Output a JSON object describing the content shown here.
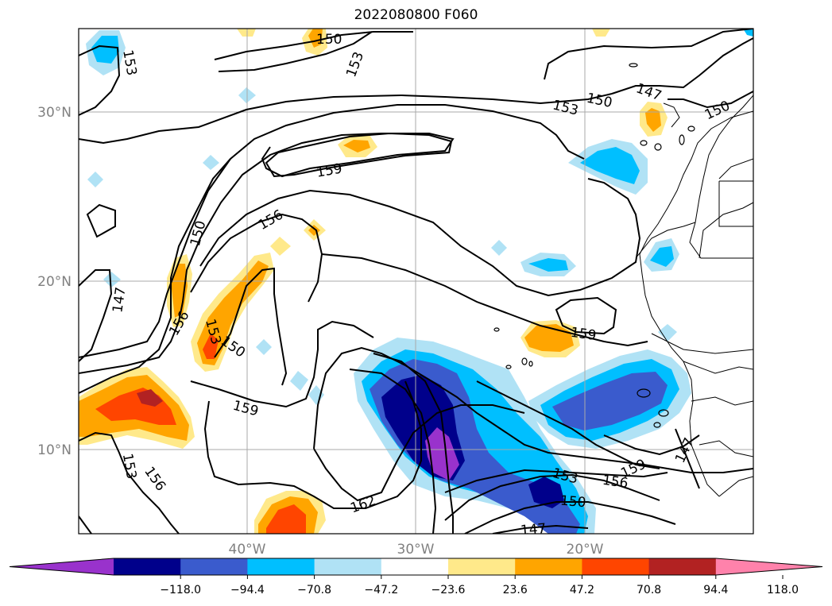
{
  "title": "2022080800 F060",
  "map": {
    "lat_labels": [
      {
        "lat": 30,
        "label": "30°N"
      },
      {
        "lat": 20,
        "label": "20°N"
      },
      {
        "lat": 10,
        "label": "10°N"
      }
    ],
    "lon_labels": [
      {
        "lon": -40,
        "label": "40°W"
      },
      {
        "lon": -30,
        "label": "30°W"
      },
      {
        "lon": -20,
        "label": "20°W"
      }
    ],
    "extent": {
      "lon_min": -50,
      "lon_max": -10,
      "lat_min": 5,
      "lat_max": 35
    },
    "contour_labels": [
      "153",
      "150",
      "153",
      "150",
      "147",
      "150",
      "153",
      "159",
      "156",
      "150",
      "147",
      "156",
      "153",
      "150",
      "159",
      "159",
      "156",
      "153",
      "150",
      "159",
      "162",
      "147",
      "153",
      "156"
    ]
  },
  "colorbar": {
    "ticks": [
      "−118.0",
      "−94.4",
      "−70.8",
      "−47.2",
      "−23.6",
      "23.6",
      "47.2",
      "70.8",
      "94.4",
      "118.0"
    ],
    "colors": [
      "#9932cc",
      "#00008b",
      "#3a5bcd",
      "#00bfff",
      "#b0e2f5",
      "#ffffff",
      "#ffe98a",
      "#ffa500",
      "#ff4500",
      "#b22222",
      "#ff82ab"
    ],
    "extend": "both"
  }
}
